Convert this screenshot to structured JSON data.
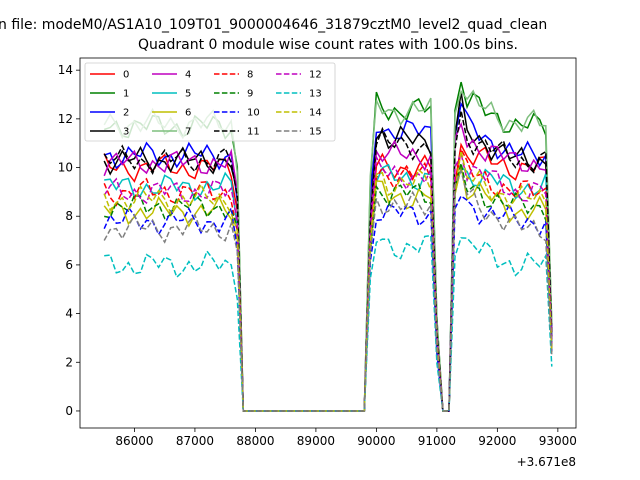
{
  "figure": {
    "suptitle": "n file: modeM0/AS1A10_109T01_9000004646_31879cztM0_level2_quad_clean"
  },
  "chart_data": {
    "type": "line",
    "title": "Quadrant 0 module wise count rates with 100.0s bins.",
    "xlabel": "",
    "ylabel": "",
    "x_offset_label": "+3.671e8",
    "xlim": [
      85100,
      93300
    ],
    "ylim": [
      -0.7,
      14.5
    ],
    "xticks": [
      86000,
      87000,
      88000,
      89000,
      90000,
      91000,
      92000,
      93000
    ],
    "yticks": [
      0,
      2,
      4,
      6,
      8,
      10,
      12,
      14
    ],
    "grid": false,
    "legend": {
      "location": "upper-left",
      "columns": 4
    },
    "x": [
      85500,
      85600,
      85700,
      85800,
      85900,
      86000,
      86100,
      86200,
      86300,
      86400,
      86500,
      86600,
      86700,
      86800,
      86900,
      87000,
      87100,
      87200,
      87300,
      87400,
      87500,
      87600,
      87700,
      87800,
      87900,
      88000,
      88100,
      88200,
      88300,
      88400,
      88500,
      88600,
      88700,
      88800,
      88900,
      89000,
      89100,
      89200,
      89300,
      89400,
      89500,
      89600,
      89700,
      89800,
      89900,
      90000,
      90100,
      90200,
      90300,
      90400,
      90500,
      90600,
      90700,
      90800,
      90900,
      91000,
      91100,
      91200,
      91300,
      91400,
      91500,
      91600,
      91700,
      91800,
      91900,
      92000,
      92100,
      92200,
      92300,
      92400,
      92500,
      92600,
      92700,
      92800,
      92900
    ],
    "shape": [
      1,
      1,
      1,
      1,
      1,
      1,
      1,
      1,
      1,
      1,
      1,
      1,
      1,
      1,
      1,
      1,
      1,
      1,
      1,
      1,
      1,
      1,
      0.85,
      0,
      0,
      0,
      0,
      0,
      0,
      0,
      0,
      0,
      0,
      0,
      0,
      0,
      0,
      0,
      0,
      0,
      0,
      0,
      0,
      0,
      0.75,
      1,
      1,
      1,
      1,
      1,
      1,
      1,
      1,
      1,
      1,
      0.3,
      0,
      0,
      0.9,
      1,
      1,
      1,
      1,
      1,
      1,
      1,
      1,
      1,
      1,
      1,
      1,
      1,
      1,
      1,
      0.3
    ],
    "series": [
      {
        "name": "0",
        "color": "#ff0000",
        "dash": "solid",
        "level": 10.0,
        "peak1": 10.0,
        "peak2": 10.9
      },
      {
        "name": "1",
        "color": "#008000",
        "dash": "solid",
        "level": 11.7,
        "peak1": 12.6,
        "peak2": 13.6
      },
      {
        "name": "2",
        "color": "#0000ff",
        "dash": "solid",
        "level": 10.5,
        "peak1": 11.8,
        "peak2": 12.7
      },
      {
        "name": "3",
        "color": "#000000",
        "dash": "solid",
        "level": 10.3,
        "peak1": 11.4,
        "peak2": 12.5
      },
      {
        "name": "4",
        "color": "#bf00bf",
        "dash": "solid",
        "level": 10.2,
        "peak1": 10.6,
        "peak2": 11.9
      },
      {
        "name": "5",
        "color": "#00bfbf",
        "dash": "solid",
        "level": 9.2,
        "peak1": 9.7,
        "peak2": 10.2
      },
      {
        "name": "6",
        "color": "#bfbf00",
        "dash": "solid",
        "level": 8.2,
        "peak1": 9.0,
        "peak2": 10.0
      },
      {
        "name": "7",
        "color": "#7fbf7f",
        "dash": "solid",
        "level": 11.8,
        "peak1": 12.5,
        "peak2": 13.6
      },
      {
        "name": "8",
        "color": "#ff0000",
        "dash": "dashed",
        "level": 9.0,
        "peak1": 9.9,
        "peak2": 10.5
      },
      {
        "name": "9",
        "color": "#008000",
        "dash": "dashed",
        "level": 8.4,
        "peak1": 9.1,
        "peak2": 9.8
      },
      {
        "name": "10",
        "color": "#0000ff",
        "dash": "dashed",
        "level": 7.8,
        "peak1": 8.2,
        "peak2": 9.0
      },
      {
        "name": "11",
        "color": "#000000",
        "dash": "dashed",
        "level": 10.3,
        "peak1": 11.1,
        "peak2": 12.1
      },
      {
        "name": "12",
        "color": "#bf00bf",
        "dash": "dashed",
        "level": 9.0,
        "peak1": 9.9,
        "peak2": 10.9
      },
      {
        "name": "13",
        "color": "#00bfbf",
        "dash": "dashed",
        "level": 6.0,
        "peak1": 7.0,
        "peak2": 7.5
      },
      {
        "name": "14",
        "color": "#bfbf00",
        "dash": "dashed",
        "level": 8.7,
        "peak1": 9.6,
        "peak2": 10.3
      },
      {
        "name": "15",
        "color": "#7f7f7f",
        "dash": "dashed",
        "level": 7.5,
        "peak1": 8.7,
        "peak2": 9.9
      }
    ]
  }
}
